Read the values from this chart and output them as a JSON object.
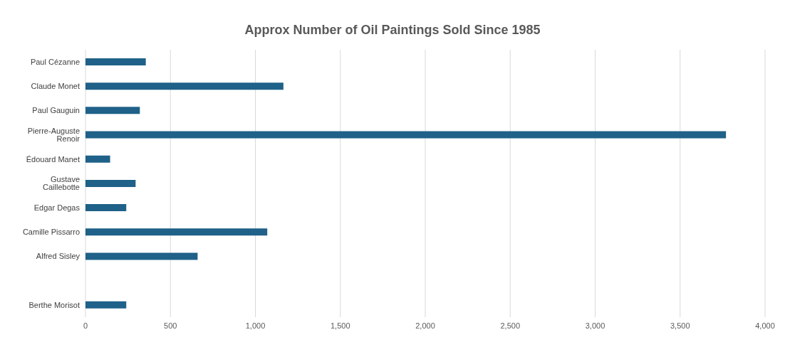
{
  "chart_data": {
    "type": "bar",
    "orientation": "horizontal",
    "title": "Approx Number of Oil Paintings Sold Since 1985",
    "categories": [
      "Paul Cézanne",
      "Claude Monet",
      "Paul Gauguin",
      "Pierre-Auguste Renoir",
      "Édouard Manet",
      "Gustave Caillebotte",
      "Edgar Degas",
      "Camille Pissarro",
      "Alfred Sisley",
      null,
      "Berthe Morisot"
    ],
    "values": [
      355,
      1165,
      320,
      3770,
      145,
      295,
      240,
      1070,
      660,
      null,
      240
    ],
    "color": "#1f6188",
    "xlim": [
      0,
      4000
    ],
    "xticks": [
      0,
      500,
      {
        "value": 1000,
        "label": "1,000"
      },
      {
        "value": 1500,
        "label": "1,500"
      },
      {
        "value": 2000,
        "label": "2,000"
      },
      {
        "value": 2500,
        "label": "2,500"
      },
      {
        "value": 3000,
        "label": "3,000"
      },
      {
        "value": 3500,
        "label": "3,500"
      },
      {
        "value": 4000,
        "label": "4,000"
      }
    ],
    "grid": "x"
  }
}
